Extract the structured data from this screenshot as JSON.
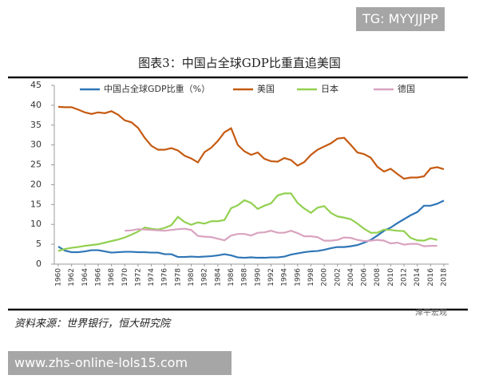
{
  "watermark_top": "TG: MYYJJPP",
  "source": "资料来源：世界银行，恒大研究院",
  "brand": "泽平宏观",
  "watermark_bottom": "www.zhs-online-lols15.com",
  "chart_data": {
    "type": "line",
    "title": "图表3：中国占全球GDP比重直追美国",
    "legend": "top",
    "grid": false,
    "x": [
      1960,
      1961,
      1962,
      1963,
      1964,
      1965,
      1966,
      1967,
      1968,
      1969,
      1970,
      1971,
      1972,
      1973,
      1974,
      1975,
      1976,
      1977,
      1978,
      1979,
      1980,
      1981,
      1982,
      1983,
      1984,
      1985,
      1986,
      1987,
      1988,
      1989,
      1990,
      1991,
      1992,
      1993,
      1994,
      1995,
      1996,
      1997,
      1998,
      1999,
      2000,
      2001,
      2002,
      2003,
      2004,
      2005,
      2006,
      2007,
      2008,
      2009,
      2010,
      2011,
      2012,
      2013,
      2014,
      2015,
      2016,
      2017,
      2018
    ],
    "xlim": [
      1960,
      2018
    ],
    "xticks": [
      1960,
      1962,
      1964,
      1966,
      1968,
      1970,
      1972,
      1974,
      1976,
      1978,
      1980,
      1982,
      1984,
      1986,
      1988,
      1990,
      1992,
      1994,
      1996,
      1998,
      2000,
      2002,
      2004,
      2006,
      2008,
      2010,
      2012,
      2014,
      2016,
      2018
    ],
    "ylim": [
      0,
      45
    ],
    "yticks": [
      0,
      5,
      10,
      15,
      20,
      25,
      30,
      35,
      40,
      45
    ],
    "series": [
      {
        "name": "中国占全球GDP比重（%）",
        "color": "#2e75b6",
        "values": [
          4.4,
          3.4,
          3.0,
          3.0,
          3.2,
          3.5,
          3.5,
          3.2,
          2.9,
          3.0,
          3.1,
          3.1,
          3.0,
          3.0,
          2.9,
          2.9,
          2.5,
          2.5,
          1.8,
          1.8,
          1.9,
          1.8,
          1.9,
          2.0,
          2.2,
          2.5,
          2.2,
          1.7,
          1.6,
          1.7,
          1.6,
          1.6,
          1.7,
          1.7,
          1.9,
          2.4,
          2.7,
          3.0,
          3.2,
          3.3,
          3.6,
          4.0,
          4.3,
          4.3,
          4.5,
          4.8,
          5.4,
          6.1,
          7.2,
          8.4,
          9.2,
          10.3,
          11.3,
          12.3,
          13.1,
          14.7,
          14.7,
          15.2,
          16.0
        ]
      },
      {
        "name": "美国",
        "color": "#c55a11",
        "values": [
          39.6,
          39.5,
          39.5,
          38.9,
          38.2,
          37.8,
          38.2,
          38.0,
          38.5,
          37.6,
          36.2,
          35.7,
          34.3,
          31.8,
          29.8,
          28.8,
          28.8,
          29.2,
          28.6,
          27.3,
          26.6,
          25.6,
          28.2,
          29.3,
          31.0,
          33.2,
          34.2,
          30.0,
          28.4,
          27.5,
          28.1,
          26.5,
          25.9,
          25.8,
          26.7,
          26.2,
          24.8,
          25.7,
          27.5,
          28.8,
          29.6,
          30.4,
          31.6,
          31.8,
          30.0,
          28.1,
          27.7,
          26.8,
          24.5,
          23.3,
          24.0,
          22.7,
          21.5,
          21.8,
          21.8,
          22.1,
          24.1,
          24.4,
          23.9
        ]
      },
      {
        "name": "日本",
        "color": "#92d050",
        "values": [
          3.3,
          3.8,
          4.1,
          4.3,
          4.6,
          4.8,
          5.0,
          5.4,
          5.8,
          6.2,
          6.7,
          7.4,
          8.2,
          9.2,
          8.9,
          8.7,
          9.1,
          9.8,
          11.9,
          10.6,
          9.9,
          10.5,
          10.2,
          10.8,
          10.8,
          11.1,
          14.1,
          14.8,
          16.1,
          15.4,
          13.9,
          14.7,
          15.3,
          17.3,
          17.8,
          17.8,
          15.4,
          14.0,
          12.9,
          14.2,
          14.6,
          12.9,
          12.0,
          11.7,
          11.3,
          10.2,
          8.9,
          7.9,
          7.9,
          8.7,
          8.6,
          8.4,
          8.3,
          6.6,
          6.0,
          5.9,
          6.5,
          6.1,
          null
        ]
      },
      {
        "name": "德国",
        "color": "#d9a3c0",
        "values": [
          null,
          null,
          null,
          null,
          null,
          null,
          null,
          null,
          null,
          null,
          8.4,
          8.5,
          8.8,
          8.7,
          8.6,
          8.5,
          8.4,
          8.6,
          8.8,
          8.9,
          8.6,
          7.1,
          6.9,
          6.8,
          6.4,
          6.0,
          7.2,
          7.6,
          7.6,
          7.2,
          7.9,
          8.0,
          8.4,
          7.9,
          7.9,
          8.4,
          7.8,
          7.0,
          7.0,
          6.8,
          5.9,
          5.9,
          6.1,
          6.7,
          6.6,
          6.1,
          5.8,
          5.9,
          6.1,
          5.9,
          5.2,
          5.4,
          4.9,
          5.1,
          5.1,
          4.5,
          4.6,
          4.6,
          null
        ]
      }
    ]
  }
}
